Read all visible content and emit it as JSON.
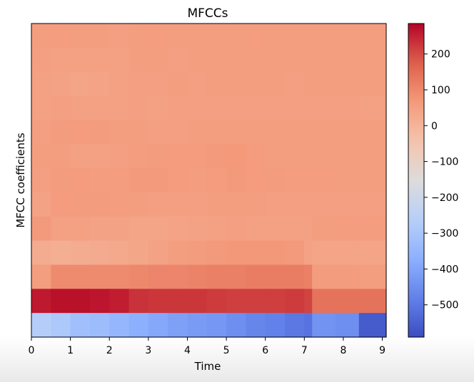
{
  "chart_data": {
    "type": "heatmap",
    "title": "MFCCs",
    "xlabel": "Time",
    "ylabel": "MFCC coefficients",
    "xlim": [
      0,
      9.1
    ],
    "x_ticks": [
      "0",
      "1",
      "2",
      "3",
      "4",
      "5",
      "6",
      "7",
      "8",
      "9"
    ],
    "colormap": "coolwarm",
    "colorbar": {
      "vmin": -590,
      "vmax": 285,
      "ticks": [
        "200",
        "100",
        "0",
        "−100",
        "−200",
        "−300",
        "−400",
        "−500"
      ],
      "tick_values": [
        200,
        100,
        0,
        -100,
        -200,
        -300,
        -400,
        -500
      ]
    },
    "time_edges": [
      0,
      0.5,
      1.0,
      1.5,
      2.0,
      2.5,
      3.0,
      3.5,
      4.0,
      4.5,
      5.0,
      5.5,
      6.0,
      6.5,
      7.0,
      7.2,
      7.8,
      8.4,
      9.1
    ],
    "rows_top_to_bottom": [
      [
        55,
        58,
        56,
        56,
        52,
        55,
        58,
        56,
        55,
        55,
        56,
        57,
        55,
        55,
        56,
        56,
        55,
        55
      ],
      [
        52,
        48,
        50,
        48,
        50,
        55,
        55,
        54,
        55,
        55,
        55,
        55,
        55,
        55,
        55,
        55,
        55,
        55
      ],
      [
        50,
        45,
        40,
        42,
        48,
        52,
        54,
        55,
        54,
        55,
        55,
        55,
        55,
        54,
        55,
        55,
        55,
        55
      ],
      [
        50,
        52,
        50,
        48,
        48,
        52,
        50,
        52,
        52,
        52,
        52,
        52,
        52,
        52,
        52,
        52,
        52,
        50
      ],
      [
        52,
        60,
        62,
        60,
        55,
        55,
        52,
        53,
        55,
        55,
        55,
        55,
        55,
        55,
        55,
        55,
        55,
        55
      ],
      [
        55,
        55,
        50,
        48,
        52,
        58,
        60,
        62,
        62,
        65,
        68,
        62,
        55,
        55,
        55,
        55,
        55,
        55
      ],
      [
        52,
        60,
        62,
        58,
        58,
        65,
        65,
        62,
        58,
        62,
        65,
        62,
        60,
        58,
        58,
        58,
        55,
        55
      ],
      [
        45,
        62,
        60,
        60,
        58,
        55,
        52,
        52,
        52,
        55,
        55,
        55,
        52,
        52,
        52,
        52,
        52,
        52
      ],
      [
        65,
        50,
        50,
        45,
        45,
        40,
        38,
        42,
        45,
        50,
        52,
        50,
        50,
        50,
        50,
        55,
        58,
        58
      ],
      [
        20,
        15,
        20,
        25,
        30,
        35,
        45,
        55,
        60,
        65,
        70,
        70,
        70,
        65,
        45,
        40,
        40,
        40
      ],
      [
        55,
        95,
        95,
        95,
        95,
        100,
        105,
        105,
        110,
        115,
        115,
        120,
        120,
        120,
        115,
        60,
        60,
        55
      ],
      [
        260,
        270,
        270,
        265,
        255,
        230,
        225,
        225,
        225,
        220,
        215,
        215,
        215,
        220,
        210,
        140,
        140,
        140
      ],
      [
        -270,
        -290,
        -320,
        -330,
        -350,
        -370,
        -390,
        -410,
        -420,
        -430,
        -450,
        -470,
        -480,
        -500,
        -510,
        -440,
        -450,
        -560
      ]
    ]
  }
}
